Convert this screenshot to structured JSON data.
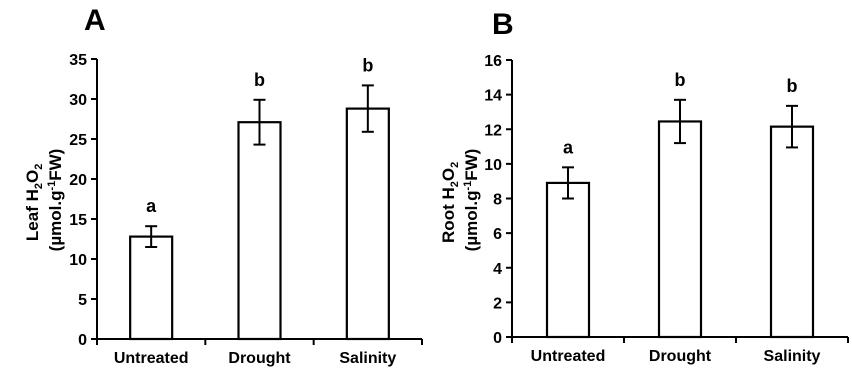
{
  "chart_data": [
    {
      "panel_label": "A",
      "type": "bar",
      "categories": [
        "Untreated",
        "Drought",
        "Salinity"
      ],
      "values": [
        12.8,
        27.1,
        28.8
      ],
      "errors": [
        1.3,
        2.8,
        2.9
      ],
      "letters": [
        "a",
        "b",
        "b"
      ],
      "ylabel_line1": {
        "pre": "Leaf H",
        "sub1": "2",
        "mid": "O",
        "sub2": "2"
      },
      "ylabel_line2": {
        "pre": "(µmol.g",
        "sup": "-1",
        "post": "FW)"
      },
      "ylim": [
        0,
        35
      ],
      "yticks": [
        0,
        5,
        10,
        15,
        20,
        25,
        30,
        35
      ],
      "grid": false
    },
    {
      "panel_label": "B",
      "type": "bar",
      "categories": [
        "Untreated",
        "Drought",
        "Salinity"
      ],
      "values": [
        8.9,
        12.45,
        12.15
      ],
      "errors": [
        0.9,
        1.25,
        1.2
      ],
      "letters": [
        "a",
        "b",
        "b"
      ],
      "ylabel_line1": {
        "pre": "Root H",
        "sub1": "2",
        "mid": "O",
        "sub2": "2"
      },
      "ylabel_line2": {
        "pre": "(µmol.g",
        "sup": "-1",
        "post": "FW)"
      },
      "ylim": [
        0,
        16
      ],
      "yticks": [
        0,
        2,
        4,
        6,
        8,
        10,
        12,
        14,
        16
      ],
      "grid": false
    }
  ]
}
